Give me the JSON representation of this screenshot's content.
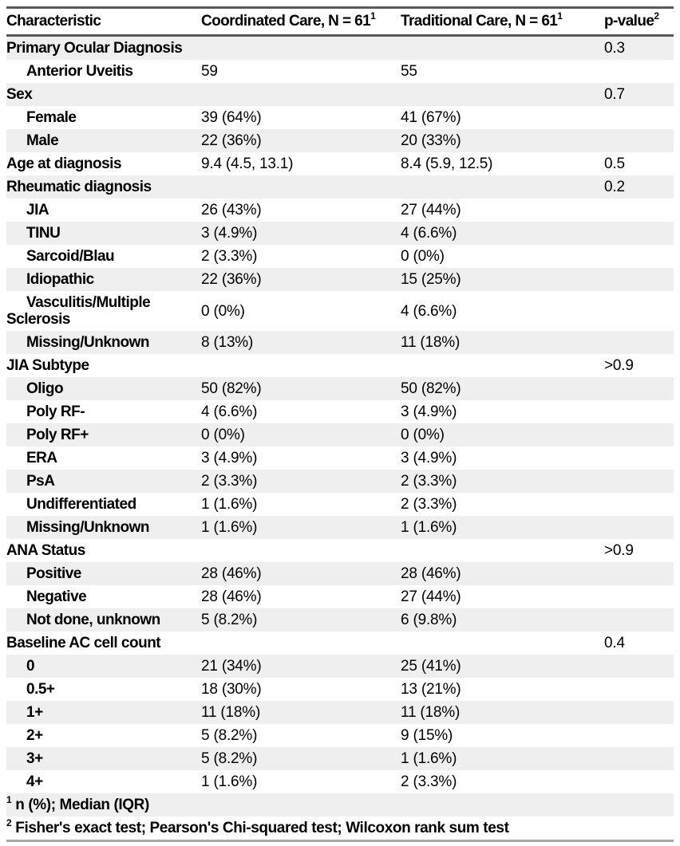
{
  "table": {
    "columns": [
      {
        "label": "Characteristic",
        "sup": ""
      },
      {
        "label": "Coordinated Care, N = 61",
        "sup": "1"
      },
      {
        "label": "Traditional Care, N = 61",
        "sup": "1"
      },
      {
        "label": "p-value",
        "sup": "2"
      }
    ],
    "rows": [
      {
        "label": "Primary Ocular Diagnosis",
        "indent": false,
        "coordinated": "",
        "traditional": "",
        "p": "0.3"
      },
      {
        "label": "Anterior Uveitis",
        "indent": true,
        "coordinated": "59",
        "traditional": "55",
        "p": ""
      },
      {
        "label": "Sex",
        "indent": false,
        "coordinated": "",
        "traditional": "",
        "p": "0.7"
      },
      {
        "label": "Female",
        "indent": true,
        "coordinated": "39 (64%)",
        "traditional": "41 (67%)",
        "p": ""
      },
      {
        "label": "Male",
        "indent": true,
        "coordinated": "22 (36%)",
        "traditional": "20 (33%)",
        "p": ""
      },
      {
        "label": "Age at diagnosis",
        "indent": false,
        "coordinated": "9.4 (4.5, 13.1)",
        "traditional": "8.4 (5.9, 12.5)",
        "p": "0.5"
      },
      {
        "label": "Rheumatic diagnosis",
        "indent": false,
        "coordinated": "",
        "traditional": "",
        "p": "0.2"
      },
      {
        "label": "JIA",
        "indent": true,
        "coordinated": "26 (43%)",
        "traditional": "27 (44%)",
        "p": ""
      },
      {
        "label": "TINU",
        "indent": true,
        "coordinated": "3 (4.9%)",
        "traditional": "4 (6.6%)",
        "p": ""
      },
      {
        "label": "Sarcoid/Blau",
        "indent": true,
        "coordinated": "2 (3.3%)",
        "traditional": "0 (0%)",
        "p": ""
      },
      {
        "label": "Idiopathic",
        "indent": true,
        "coordinated": "22 (36%)",
        "traditional": "15 (25%)",
        "p": ""
      },
      {
        "label": "Vasculitis/Multiple Sclerosis",
        "indent": true,
        "coordinated": "0 (0%)",
        "traditional": "4 (6.6%)",
        "p": ""
      },
      {
        "label": "Missing/Unknown",
        "indent": true,
        "coordinated": "8 (13%)",
        "traditional": "11 (18%)",
        "p": ""
      },
      {
        "label": "JIA Subtype",
        "indent": false,
        "coordinated": "",
        "traditional": "",
        "p": ">0.9"
      },
      {
        "label": "Oligo",
        "indent": true,
        "coordinated": "50 (82%)",
        "traditional": "50 (82%)",
        "p": ""
      },
      {
        "label": "Poly RF-",
        "indent": true,
        "coordinated": "4 (6.6%)",
        "traditional": "3 (4.9%)",
        "p": ""
      },
      {
        "label": "Poly RF+",
        "indent": true,
        "coordinated": "0 (0%)",
        "traditional": "0 (0%)",
        "p": ""
      },
      {
        "label": "ERA",
        "indent": true,
        "coordinated": "3 (4.9%)",
        "traditional": "3 (4.9%)",
        "p": ""
      },
      {
        "label": "PsA",
        "indent": true,
        "coordinated": "2 (3.3%)",
        "traditional": "2 (3.3%)",
        "p": ""
      },
      {
        "label": "Undifferentiated",
        "indent": true,
        "coordinated": "1 (1.6%)",
        "traditional": "2 (3.3%)",
        "p": ""
      },
      {
        "label": "Missing/Unknown",
        "indent": true,
        "coordinated": "1 (1.6%)",
        "traditional": "1 (1.6%)",
        "p": ""
      },
      {
        "label": "ANA Status",
        "indent": false,
        "coordinated": "",
        "traditional": "",
        "p": ">0.9"
      },
      {
        "label": "Positive",
        "indent": true,
        "coordinated": "28 (46%)",
        "traditional": "28 (46%)",
        "p": ""
      },
      {
        "label": "Negative",
        "indent": true,
        "coordinated": "28 (46%)",
        "traditional": "27 (44%)",
        "p": ""
      },
      {
        "label": "Not done, unknown",
        "indent": true,
        "coordinated": "5 (8.2%)",
        "traditional": "6 (9.8%)",
        "p": ""
      },
      {
        "label": "Baseline AC cell count",
        "indent": false,
        "coordinated": "",
        "traditional": "",
        "p": "0.4"
      },
      {
        "label": "0",
        "indent": true,
        "coordinated": "21 (34%)",
        "traditional": "25 (41%)",
        "p": ""
      },
      {
        "label": "0.5+",
        "indent": true,
        "coordinated": "18 (30%)",
        "traditional": "13 (21%)",
        "p": ""
      },
      {
        "label": "1+",
        "indent": true,
        "coordinated": "11 (18%)",
        "traditional": "11 (18%)",
        "p": ""
      },
      {
        "label": "2+",
        "indent": true,
        "coordinated": "5 (8.2%)",
        "traditional": "9 (15%)",
        "p": ""
      },
      {
        "label": "3+",
        "indent": true,
        "coordinated": "5 (8.2%)",
        "traditional": "1 (1.6%)",
        "p": ""
      },
      {
        "label": "4+",
        "indent": true,
        "coordinated": "1 (1.6%)",
        "traditional": "2 (3.3%)",
        "p": ""
      }
    ],
    "footnotes": [
      {
        "marker": "1",
        "text": "n (%); Median (IQR)"
      },
      {
        "marker": "2",
        "text": "Fisher's exact test; Pearson's Chi-squared test; Wilcoxon rank sum test"
      }
    ],
    "colors": {
      "stripe": "#efefef",
      "rule_dark": "#595959",
      "rule_bottom": "#a6a6a6",
      "text": "#000000"
    }
  }
}
